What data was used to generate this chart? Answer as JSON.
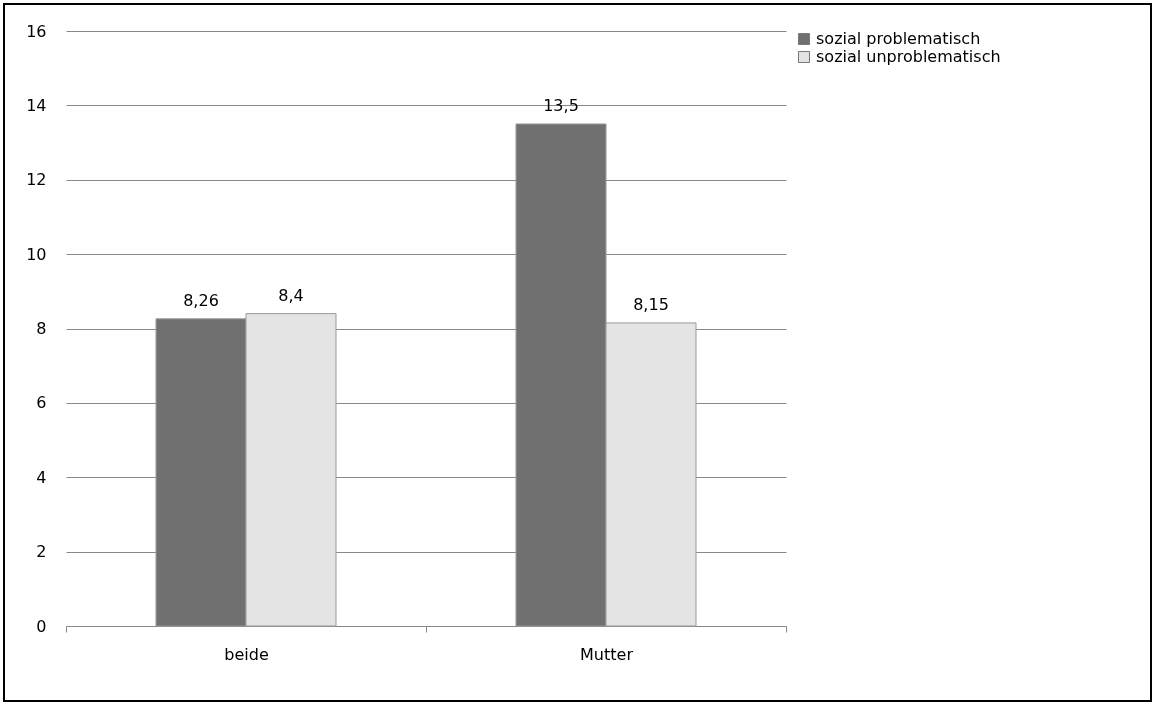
{
  "chart_data": {
    "type": "bar",
    "categories": [
      "beide",
      "Mutter"
    ],
    "series": [
      {
        "name": "sozial problematisch",
        "color": "#707070",
        "values": [
          8.26,
          13.5
        ],
        "value_labels": [
          "8,26",
          "13,5"
        ]
      },
      {
        "name": "sozial unproblematisch",
        "color": "#e4e4e4",
        "values": [
          8.4,
          8.15
        ],
        "value_labels": [
          "8,4",
          "8,15"
        ]
      }
    ],
    "ylim": [
      0,
      16
    ],
    "yticks": [
      0,
      2,
      4,
      6,
      8,
      10,
      12,
      14,
      16
    ],
    "grid": "y",
    "legend": "right"
  }
}
